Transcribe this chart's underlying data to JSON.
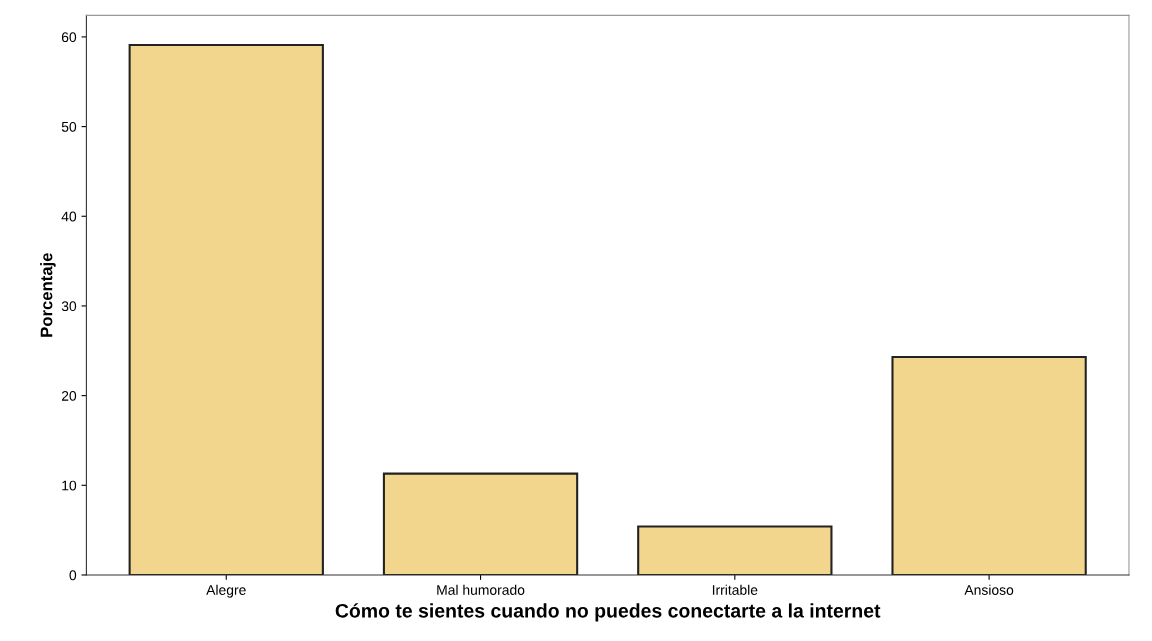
{
  "chart_data": {
    "type": "bar",
    "xlabel": "Cómo te sientes cuando no puedes conectarte a la internet",
    "ylabel": "Porcentaje",
    "categories": [
      "Alegre",
      "Mal humorado",
      "Irritable",
      "Ansioso"
    ],
    "values": [
      59.1,
      11.3,
      5.4,
      24.3
    ],
    "color": "#f2d68e",
    "ylim": [
      0,
      62.4
    ],
    "yticks": [
      0,
      10,
      20,
      30,
      40,
      50,
      60
    ],
    "grid": false
  }
}
